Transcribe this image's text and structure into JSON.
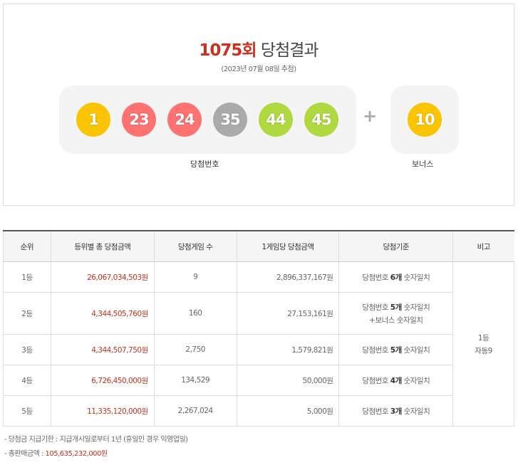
{
  "header": {
    "round": "1075회",
    "title_suffix": "당첨결과",
    "draw_date": "(2023년 07월 08일 추첨)"
  },
  "winning_numbers": [
    {
      "value": "1",
      "color": "#fbc400"
    },
    {
      "value": "23",
      "color": "#ff7272"
    },
    {
      "value": "24",
      "color": "#ff7272"
    },
    {
      "value": "35",
      "color": "#aaaaaa"
    },
    {
      "value": "44",
      "color": "#b0d840"
    },
    {
      "value": "45",
      "color": "#b0d840"
    }
  ],
  "bonus": {
    "value": "10",
    "color": "#fbc400"
  },
  "plus_symbol": "+",
  "labels": {
    "winning": "당첨번호",
    "bonus": "보너스"
  },
  "table": {
    "headers": [
      "순위",
      "등위별 총 당첨금액",
      "당첨게임 수",
      "1게임당 당첨금액",
      "당첨기준",
      "비고"
    ],
    "rows": [
      {
        "rank": "1등",
        "total": "26,067,034,503원",
        "count": "9",
        "per_game": "2,896,337,167원",
        "criteria_pre": "당첨번호 ",
        "criteria_bold": "6개",
        "criteria_post": " 숫자일치",
        "criteria_line2": ""
      },
      {
        "rank": "2등",
        "total": "4,344,505,760원",
        "count": "160",
        "per_game": "27,153,161원",
        "criteria_pre": "당첨번호 ",
        "criteria_bold": "5개",
        "criteria_post": " 숫자일치",
        "criteria_line2": "+보너스 숫자일치"
      },
      {
        "rank": "3등",
        "total": "4,344,507,750원",
        "count": "2,750",
        "per_game": "1,579,821원",
        "criteria_pre": "당첨번호 ",
        "criteria_bold": "5개",
        "criteria_post": " 숫자일치",
        "criteria_line2": ""
      },
      {
        "rank": "4등",
        "total": "6,726,450,000원",
        "count": "134,529",
        "per_game": "50,000원",
        "criteria_pre": "당첨번호 ",
        "criteria_bold": "4개",
        "criteria_post": " 숫자일치",
        "criteria_line2": ""
      },
      {
        "rank": "5등",
        "total": "11,335,120,000원",
        "count": "2,267,024",
        "per_game": "5,000원",
        "criteria_pre": "당첨번호 ",
        "criteria_bold": "3개",
        "criteria_post": " 숫자일치",
        "criteria_line2": ""
      }
    ],
    "remark_line1": "1등",
    "remark_line2": "자동9"
  },
  "notes": {
    "deadline_label": "-  당첨금 지급기한 : 지급개시일로부터 1년 (휴일인 경우 익영업일)",
    "sales_label": "-  총판매금액 : ",
    "sales_amount": "105,635,232,000원"
  }
}
